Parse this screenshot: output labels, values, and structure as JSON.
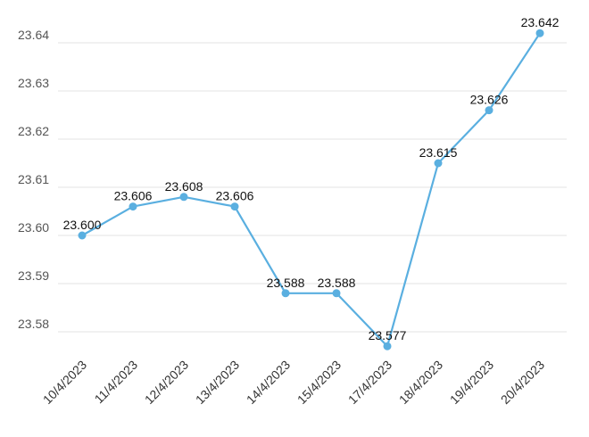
{
  "chart_data": {
    "type": "line",
    "title": "",
    "xlabel": "",
    "ylabel": "",
    "categories": [
      "10/4/2023",
      "11/4/2023",
      "12/4/2023",
      "13/4/2023",
      "14/4/2023",
      "15/4/2023",
      "17/4/2023",
      "18/4/2023",
      "19/4/2023",
      "20/4/2023"
    ],
    "series": [
      {
        "values": [
          23.6,
          23.606,
          23.608,
          23.606,
          23.588,
          23.588,
          23.577,
          23.615,
          23.626,
          23.642
        ],
        "labels": [
          "23.600",
          "23.606",
          "23.608",
          "23.606",
          "23.588",
          "23.588",
          "23.577",
          "23.615",
          "23.626",
          "23.642"
        ],
        "color": "#5aafe0"
      }
    ],
    "yticks": [
      "23.58",
      "23.59",
      "23.60",
      "23.61",
      "23.62",
      "23.63",
      "23.64"
    ],
    "ylim": [
      23.575,
      23.645
    ],
    "grid": true,
    "legend": "none"
  }
}
